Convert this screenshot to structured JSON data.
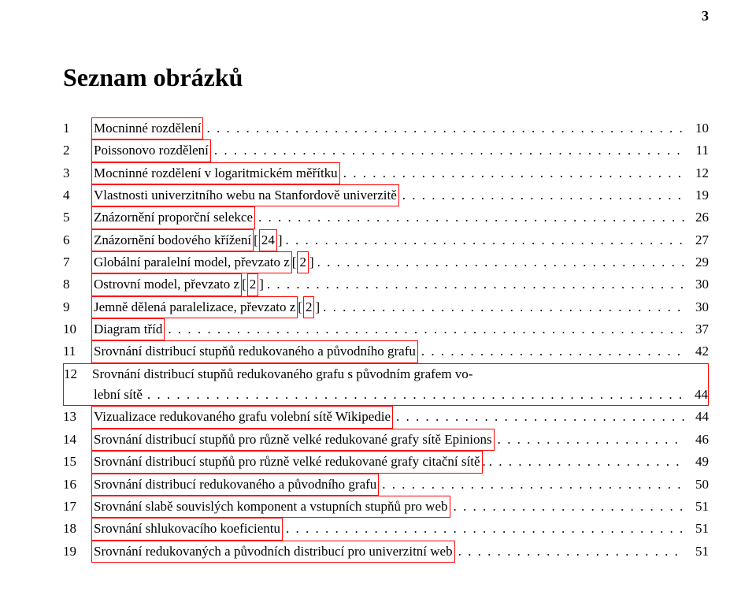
{
  "page_number": "3",
  "title": "Seznam obrázků",
  "entry_link_color": "#ff0000",
  "entries": [
    {
      "num": "1",
      "text": "Mocninné rozdělení",
      "refs": [],
      "page": "10"
    },
    {
      "num": "2",
      "text": "Poissonovo rozdělení",
      "refs": [],
      "page": "11"
    },
    {
      "num": "3",
      "text": "Mocninné rozdělení v logaritmickém měřítku",
      "refs": [],
      "page": "12"
    },
    {
      "num": "4",
      "text": "Vlastnosti univerzitního webu na Stanfordově univerzitě",
      "refs": [],
      "page": "19"
    },
    {
      "num": "5",
      "text": "Znázornění proporční selekce",
      "refs": [],
      "page": "26"
    },
    {
      "num": "6",
      "text": "Znázornění bodového křížení",
      "refs": [
        "24"
      ],
      "page": "27"
    },
    {
      "num": "7",
      "text": "Globální paralelní model, převzato z",
      "refs": [
        "2"
      ],
      "page": "29"
    },
    {
      "num": "8",
      "text": "Ostrovní model, převzato z",
      "refs": [
        "2"
      ],
      "page": "30"
    },
    {
      "num": "9",
      "text": "Jemně dělená paralelizace, převzato z",
      "refs": [
        "2"
      ],
      "page": "30"
    },
    {
      "num": "10",
      "text": "Diagram tříd",
      "refs": [],
      "page": "37"
    },
    {
      "num": "11",
      "text": "Srovnání distribucí stupňů redukovaného a původního grafu",
      "refs": [],
      "page": "42"
    },
    {
      "num": "12",
      "text_line1": "Srovnání distribucí stupňů redukovaného grafu s původním grafem vo-",
      "text_line2": "lební sítě",
      "refs": [],
      "page": "44",
      "multiline": true
    },
    {
      "num": "13",
      "text": "Vizualizace redukovaného grafu volební sítě Wikipedie",
      "refs": [],
      "page": "44"
    },
    {
      "num": "14",
      "text": "Srovnání distribucí stupňů pro různě velké redukované grafy sítě Epinions",
      "refs": [],
      "page": "46"
    },
    {
      "num": "15",
      "text": "Srovnání distribucí stupňů pro různě velké redukované grafy citační sítě",
      "refs": [],
      "page": "49",
      "trailingDot": true
    },
    {
      "num": "16",
      "text": "Srovnání distribucí redukovaného a původního grafu",
      "refs": [],
      "page": "50"
    },
    {
      "num": "17",
      "text": "Srovnání slabě souvislých komponent a vstupních stupňů pro web",
      "refs": [],
      "page": "51"
    },
    {
      "num": "18",
      "text": "Srovnání shlukovacího koeficientu",
      "refs": [],
      "page": "51"
    },
    {
      "num": "19",
      "text": "Srovnání redukovaných a původních distribucí pro univerzitní web",
      "refs": [],
      "page": "51"
    }
  ]
}
